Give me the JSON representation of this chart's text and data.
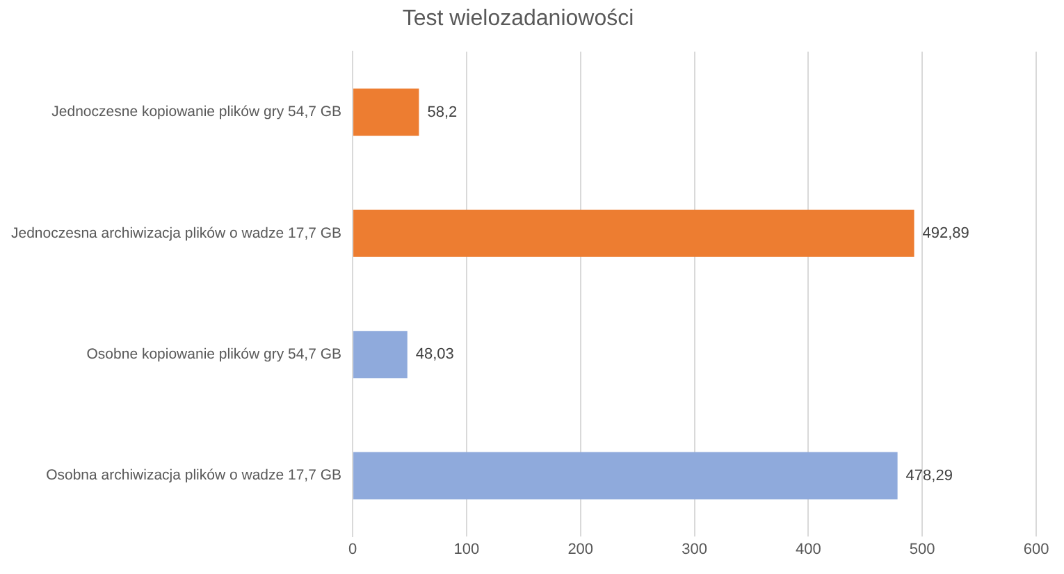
{
  "chart_data": {
    "type": "bar",
    "orientation": "horizontal",
    "title": "Test wielozadaniowości",
    "categories": [
      "Jednoczesne kopiowanie plików gry 54,7 GB",
      "Jednoczesna archiwizacja plików o wadze 17,7 GB",
      "Osobne kopiowanie plików gry 54,7 GB",
      "Osobna archiwizacja plików o wadze 17,7 GB"
    ],
    "values": [
      58.2,
      492.89,
      48.03,
      478.29
    ],
    "colors": [
      "#ed7d31",
      "#ed7d31",
      "#8faadc",
      "#8faadc"
    ],
    "value_labels": [
      "58,2",
      "492,89",
      "48,03",
      "478,29"
    ],
    "xlim": [
      0,
      600
    ],
    "xticks": [
      0,
      100,
      200,
      300,
      400,
      500,
      600
    ],
    "grid": "x",
    "legend": false
  }
}
